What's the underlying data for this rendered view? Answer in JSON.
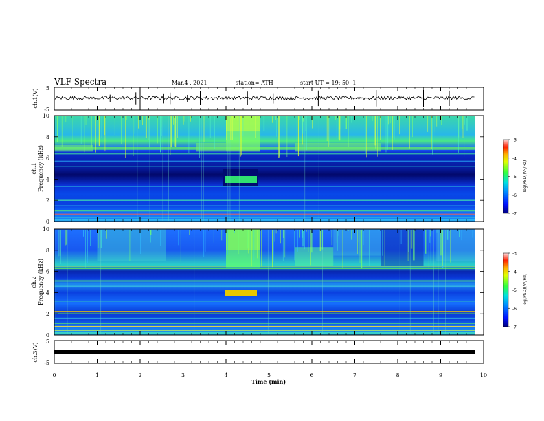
{
  "header": {
    "title": "VLF Spectra",
    "date": "Mar.4 , 2021",
    "station": "station= ATH",
    "start": "start UT =  19: 50: 1"
  },
  "chart_data": {
    "type": "heatmap",
    "x": {
      "label": "Time (min)",
      "range": [
        0,
        10
      ],
      "ticks": [
        "0",
        "1",
        "2",
        "3",
        "4",
        "5",
        "6",
        "7",
        "8",
        "9",
        "10"
      ]
    },
    "panels": [
      {
        "name": "ch1-waveform",
        "type": "line",
        "ylabel": "ch.1(V)",
        "ylim": [
          -5,
          5
        ],
        "yticks": [
          "5",
          "-5"
        ]
      },
      {
        "name": "ch1-spectrogram",
        "type": "heatmap",
        "ylabel_top": "ch.1",
        "ylabel": "Frequency (kHz)",
        "ylim": [
          0,
          10
        ],
        "yticks": [
          "0",
          "2",
          "4",
          "6",
          "8",
          "10"
        ]
      },
      {
        "name": "ch2-spectrogram",
        "type": "heatmap",
        "ylabel_top": "ch.2",
        "ylabel": "Frequency (kHz)",
        "ylim": [
          0,
          10
        ],
        "yticks": [
          "0",
          "2",
          "4",
          "6",
          "8",
          "10"
        ]
      },
      {
        "name": "ch3-waveform",
        "type": "line",
        "ylabel": "ch.3(V)",
        "ylim": [
          -5,
          5
        ],
        "yticks": [
          "5",
          "-5"
        ]
      }
    ],
    "colorbar": {
      "label": "log(PSD)(V²/Hz)",
      "range": [
        -7,
        -3
      ],
      "ticks": [
        "-3",
        "-4",
        "-5",
        "-6",
        "-7"
      ]
    },
    "features": {
      "data_end_minute": 9.8,
      "enhanced_interval_minutes": [
        4.0,
        4.8
      ],
      "enhanced_band_khz": [
        3.6,
        4.4
      ]
    }
  }
}
